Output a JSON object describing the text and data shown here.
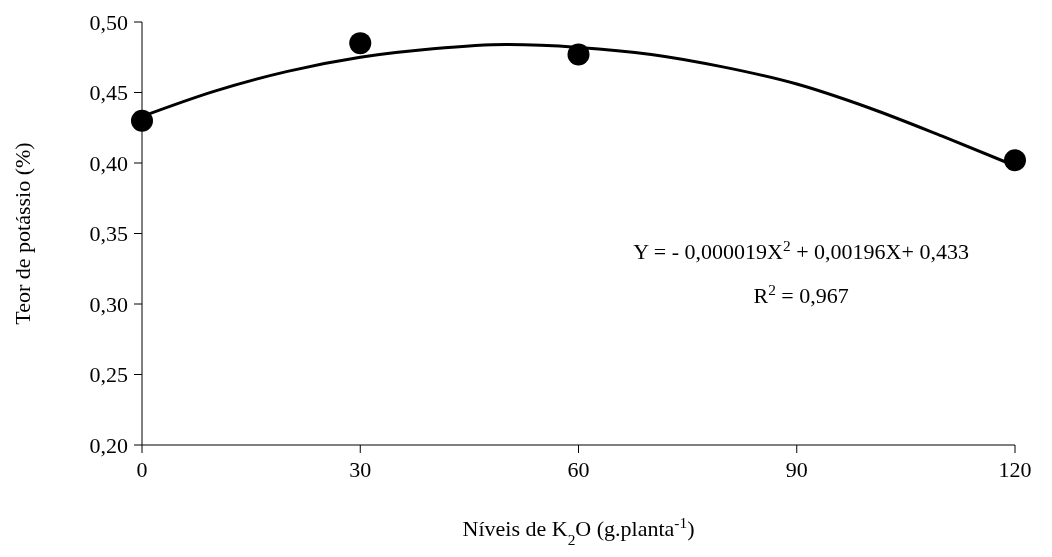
{
  "chart_data": {
    "type": "scatter",
    "xlabel": "Níveis de K$_{2}$O (g.planta$^{-1}$)",
    "ylabel": "Teor de potássio (%)",
    "xlim": [
      0,
      120
    ],
    "xticks": [
      0,
      30,
      60,
      90,
      120
    ],
    "ylim": [
      0.2,
      0.5
    ],
    "yticks": [
      {
        "value": 0.2,
        "label": "0,20"
      },
      {
        "value": 0.25,
        "label": "0,25"
      },
      {
        "value": 0.3,
        "label": "0,30"
      },
      {
        "value": 0.35,
        "label": "0,35"
      },
      {
        "value": 0.4,
        "label": "0,40"
      },
      {
        "value": 0.45,
        "label": "0,45"
      },
      {
        "value": 0.5,
        "label": "0,50"
      }
    ],
    "grid": false,
    "legend": false,
    "line_style": "solid",
    "series": [
      {
        "marker": "circle",
        "color": "#000000",
        "x": [
          0,
          30,
          60,
          120
        ],
        "values": [
          0.43,
          0.485,
          0.477,
          0.402
        ]
      },
      {
        "type": "line",
        "marker": "none",
        "color": "#000000",
        "x": [
          0,
          10,
          20,
          30,
          40,
          50,
          60,
          70,
          80,
          90,
          100,
          110,
          120
        ],
        "values": [
          0.433,
          0.451,
          0.465,
          0.475,
          0.481,
          0.484,
          0.482,
          0.477,
          0.468,
          0.456,
          0.439,
          0.419,
          0.398
        ]
      }
    ],
    "annotations": [
      "Y = - 0,000019X$^{2}$ + 0,00196X+ 0,433",
      "R$^{2}$ = 0,967"
    ]
  }
}
